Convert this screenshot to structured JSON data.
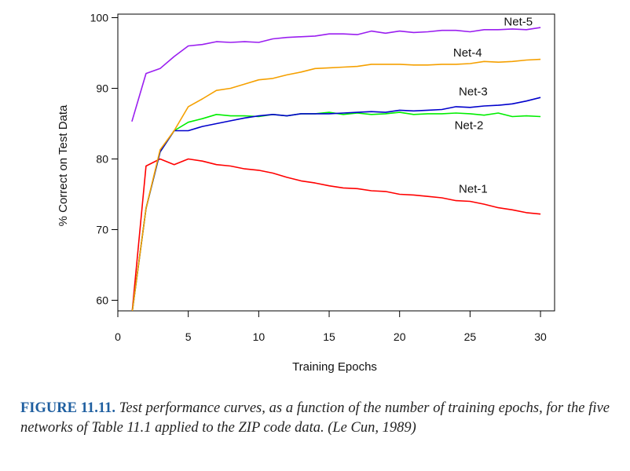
{
  "figure": {
    "caption_lead": "FIGURE 11.11.",
    "caption_text": "Test performance curves, as a function of the number of training epochs, for the five networks of Table 11.1 applied to the ZIP code data. (Le Cun, 1989)"
  },
  "chart_data": {
    "type": "line",
    "title": "",
    "xlabel": "Training Epochs",
    "ylabel": "% Correct on Test Data",
    "xlim": [
      0,
      31
    ],
    "ylim": [
      58.5,
      100.5
    ],
    "xticks": [
      0,
      5,
      10,
      15,
      20,
      25,
      30
    ],
    "yticks": [
      60,
      70,
      80,
      90,
      100
    ],
    "grid": false,
    "legend": "inline labels at right",
    "series": [
      {
        "name": "Net-1",
        "color": "#ff0000",
        "x": [
          1,
          2,
          3,
          4,
          5,
          6,
          7,
          8,
          9,
          10,
          11,
          12,
          13,
          14,
          15,
          16,
          17,
          18,
          19,
          20,
          21,
          22,
          23,
          24,
          25,
          26,
          27,
          28,
          29,
          30
        ],
        "y": [
          58,
          79,
          80,
          79.2,
          80,
          79.7,
          79.2,
          79,
          78.6,
          78.4,
          78,
          77.4,
          76.9,
          76.6,
          76.2,
          75.9,
          75.8,
          75.5,
          75.4,
          75,
          74.9,
          74.7,
          74.5,
          74.1,
          74,
          73.6,
          73.1,
          72.8,
          72.4,
          72.2
        ]
      },
      {
        "name": "Net-2",
        "color": "#00ee00",
        "x": [
          1,
          2,
          3,
          4,
          5,
          6,
          7,
          8,
          9,
          10,
          11,
          12,
          13,
          14,
          15,
          16,
          17,
          18,
          19,
          20,
          21,
          22,
          23,
          24,
          25,
          26,
          27,
          28,
          29,
          30
        ],
        "y": [
          58,
          73,
          81,
          84,
          85.2,
          85.7,
          86.3,
          86.1,
          86.1,
          86,
          86.3,
          86.1,
          86.4,
          86.4,
          86.6,
          86.3,
          86.5,
          86.3,
          86.4,
          86.6,
          86.3,
          86.4,
          86.4,
          86.5,
          86.4,
          86.2,
          86.5,
          86,
          86.1,
          86
        ]
      },
      {
        "name": "Net-3",
        "color": "#0000cc",
        "x": [
          1,
          2,
          3,
          4,
          5,
          6,
          7,
          8,
          9,
          10,
          11,
          12,
          13,
          14,
          15,
          16,
          17,
          18,
          19,
          20,
          21,
          22,
          23,
          24,
          25,
          26,
          27,
          28,
          29,
          30
        ],
        "y": [
          58,
          73,
          81,
          84,
          84,
          84.6,
          85,
          85.4,
          85.8,
          86.1,
          86.3,
          86.1,
          86.4,
          86.4,
          86.4,
          86.5,
          86.6,
          86.7,
          86.6,
          86.9,
          86.8,
          86.9,
          87,
          87.4,
          87.3,
          87.5,
          87.6,
          87.8,
          88.2,
          88.7
        ]
      },
      {
        "name": "Net-4",
        "color": "#f5a000",
        "x": [
          1,
          2,
          3,
          4,
          5,
          6,
          7,
          8,
          9,
          10,
          11,
          12,
          13,
          14,
          15,
          16,
          17,
          18,
          19,
          20,
          21,
          22,
          23,
          24,
          25,
          26,
          27,
          28,
          29,
          30
        ],
        "y": [
          58,
          73,
          81.3,
          84,
          87.4,
          88.5,
          89.7,
          90,
          90.6,
          91.2,
          91.4,
          91.9,
          92.3,
          92.8,
          92.9,
          93,
          93.1,
          93.4,
          93.4,
          93.4,
          93.3,
          93.3,
          93.4,
          93.4,
          93.5,
          93.8,
          93.7,
          93.8,
          94,
          94.1
        ]
      },
      {
        "name": "Net-5",
        "color": "#9a1ef0",
        "x": [
          1,
          2,
          3,
          4,
          5,
          6,
          7,
          8,
          9,
          10,
          11,
          12,
          13,
          14,
          15,
          16,
          17,
          18,
          19,
          20,
          21,
          22,
          23,
          24,
          25,
          26,
          27,
          28,
          29,
          30
        ],
        "y": [
          85.3,
          92.1,
          92.8,
          94.5,
          96,
          96.2,
          96.6,
          96.5,
          96.6,
          96.5,
          97,
          97.2,
          97.3,
          97.4,
          97.7,
          97.7,
          97.6,
          98.1,
          97.8,
          98.1,
          97.9,
          98,
          98.2,
          98.2,
          98,
          98.3,
          98.3,
          98.4,
          98.3,
          98.6
        ]
      }
    ]
  }
}
